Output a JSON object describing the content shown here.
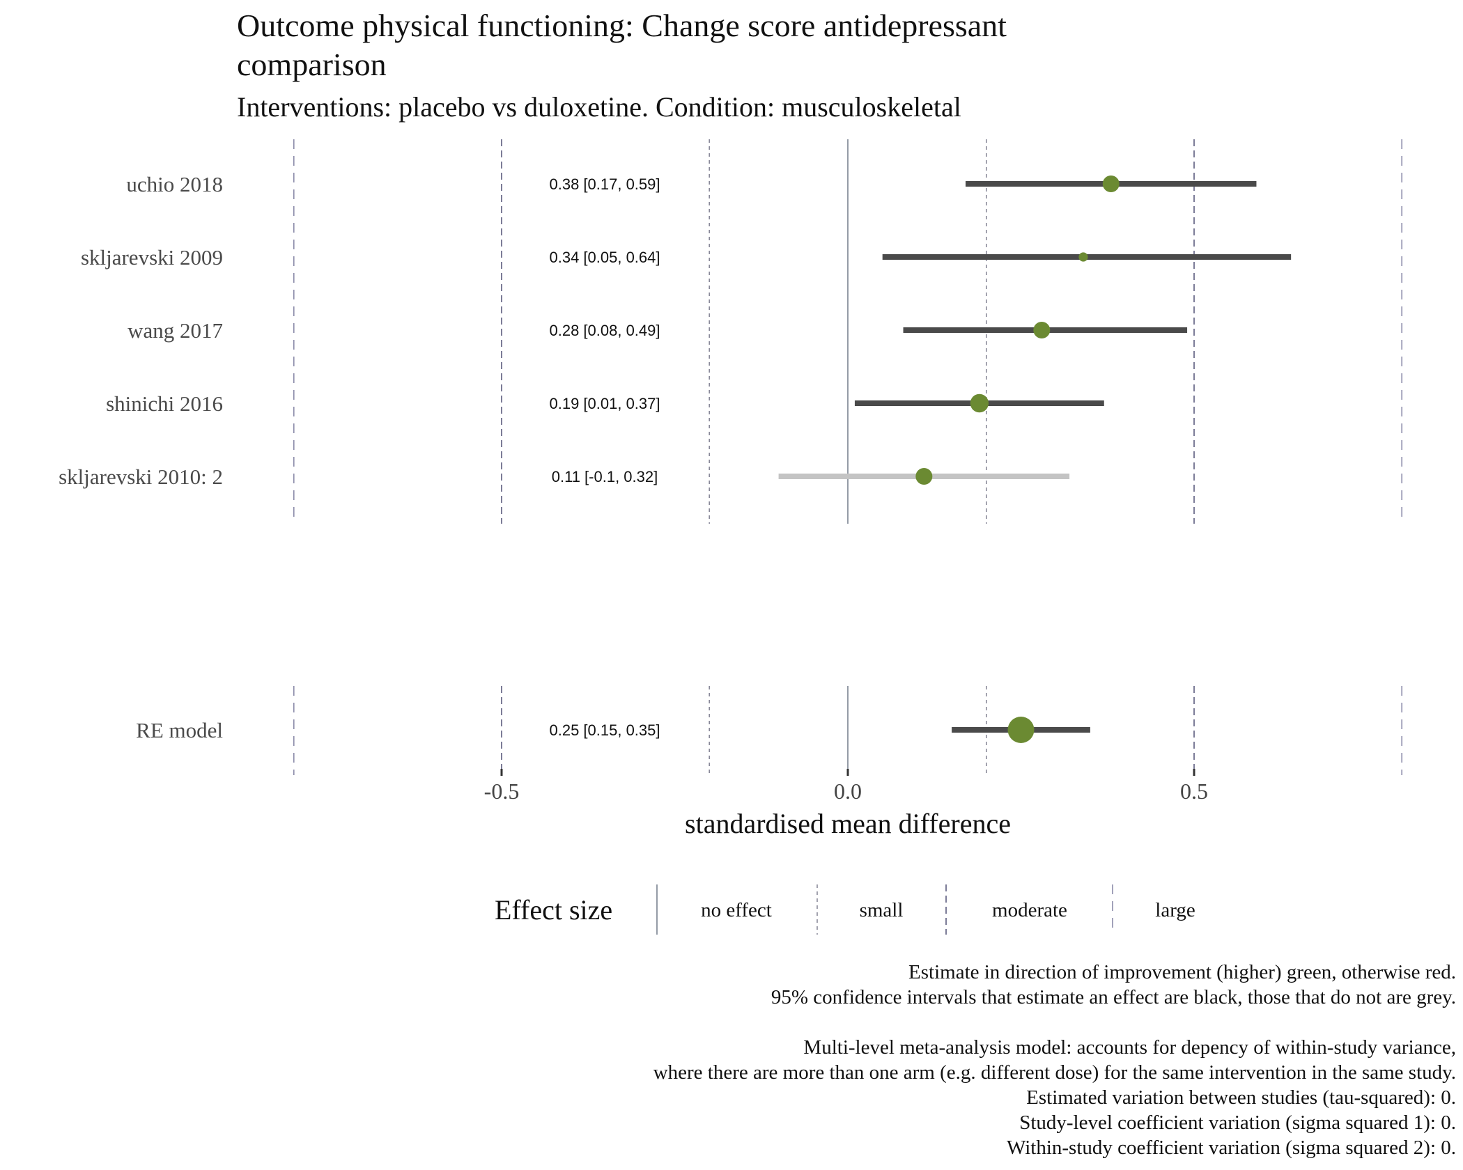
{
  "chart_data": {
    "type": "forest",
    "title_line1": "Outcome physical functioning: Change score antidepressant",
    "title_line2": "comparison",
    "subtitle": "Interventions: placebo vs duloxetine. Condition: musculoskeletal",
    "xlabel": "standardised mean difference",
    "xlim": [
      -0.8,
      0.8
    ],
    "x_ticks": [
      {
        "value": -0.5,
        "label": "-0.5"
      },
      {
        "value": 0.0,
        "label": "0.0"
      },
      {
        "value": 0.5,
        "label": "0.5"
      }
    ],
    "reference_lines": [
      {
        "value": -0.8,
        "kind": "large"
      },
      {
        "value": -0.5,
        "kind": "moderate"
      },
      {
        "value": -0.2,
        "kind": "small"
      },
      {
        "value": 0.0,
        "kind": "no-effect"
      },
      {
        "value": 0.2,
        "kind": "small"
      },
      {
        "value": 0.5,
        "kind": "moderate"
      },
      {
        "value": 0.8,
        "kind": "large"
      }
    ],
    "studies": [
      {
        "label": "uchio 2018",
        "estimate": 0.38,
        "lower": 0.17,
        "upper": 0.59,
        "text": "0.38 [0.17, 0.59]",
        "weight": 1.0,
        "ci_color": "#4a4a4a"
      },
      {
        "label": "skljarevski 2009",
        "estimate": 0.34,
        "lower": 0.05,
        "upper": 0.64,
        "text": "0.34 [0.05, 0.64]",
        "weight": 0.55,
        "ci_color": "#4a4a4a"
      },
      {
        "label": "wang 2017",
        "estimate": 0.28,
        "lower": 0.08,
        "upper": 0.49,
        "text": "0.28 [0.08, 0.49]",
        "weight": 1.0,
        "ci_color": "#4a4a4a"
      },
      {
        "label": "shinichi 2016",
        "estimate": 0.19,
        "lower": 0.01,
        "upper": 0.37,
        "text": "0.19 [0.01, 0.37]",
        "weight": 1.1,
        "ci_color": "#4a4a4a"
      },
      {
        "label": "skljarevski 2010: 2",
        "estimate": 0.11,
        "lower": -0.1,
        "upper": 0.32,
        "text": "0.11 [-0.1, 0.32]",
        "weight": 1.0,
        "ci_color": "#c4c4c4"
      }
    ],
    "summary": {
      "label": "RE model",
      "estimate": 0.25,
      "lower": 0.15,
      "upper": 0.35,
      "text": "0.25 [0.15, 0.35]",
      "ci_color": "#4a4a4a"
    },
    "point_color": "#6b8a32",
    "legend": {
      "title": "Effect size",
      "items": [
        {
          "label": "no effect",
          "kind": "no-effect"
        },
        {
          "label": "small",
          "kind": "small"
        },
        {
          "label": "moderate",
          "kind": "moderate"
        },
        {
          "label": "large",
          "kind": "large"
        }
      ]
    },
    "caption_lines": [
      "Estimate in direction of improvement (higher) green, otherwise red.",
      "95% confidence intervals that estimate an effect are black, those that do not are grey.",
      "",
      "Multi-level meta-analysis model: accounts for depency of within-study variance,",
      "where there are more than one arm (e.g. different dose) for the same intervention in the same study.",
      "Estimated variation between studies (tau-squared): 0.",
      "Study-level coefficient variation (sigma squared 1): 0.",
      "Within-study coefficient variation (sigma squared 2): 0."
    ]
  }
}
